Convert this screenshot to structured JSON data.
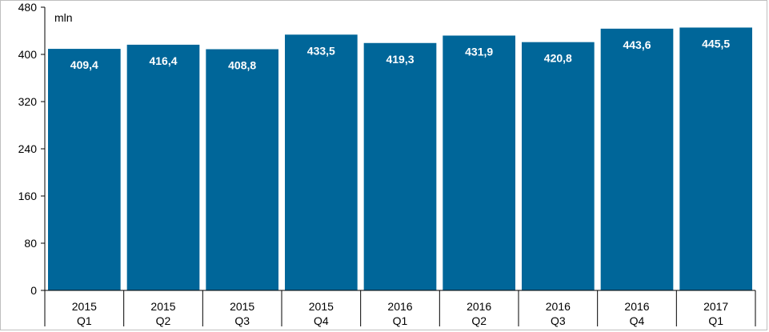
{
  "chart_data": {
    "type": "bar",
    "categories": [
      [
        "2015",
        "Q1"
      ],
      [
        "2015",
        "Q2"
      ],
      [
        "2015",
        "Q3"
      ],
      [
        "2015",
        "Q4"
      ],
      [
        "2016",
        "Q1"
      ],
      [
        "2016",
        "Q2"
      ],
      [
        "2016",
        "Q3"
      ],
      [
        "2016",
        "Q4"
      ],
      [
        "2017",
        "Q1"
      ]
    ],
    "values": [
      409.4,
      416.4,
      408.8,
      433.5,
      419.3,
      431.9,
      420.8,
      443.6,
      445.5
    ],
    "value_labels": [
      "409,4",
      "416,4",
      "408,8",
      "433,5",
      "419,3",
      "431,9",
      "420,8",
      "443,6",
      "445,5"
    ],
    "unit_label": "mln",
    "title": "",
    "xlabel": "",
    "ylabel": "",
    "ylim": [
      0,
      480
    ],
    "yticks": [
      0,
      80,
      160,
      240,
      320,
      400,
      480
    ],
    "grid": false,
    "legend": "none",
    "colors": {
      "bar": "#006699",
      "value_label": "#ffffff",
      "text": "#000000",
      "axis": "#000000"
    }
  }
}
